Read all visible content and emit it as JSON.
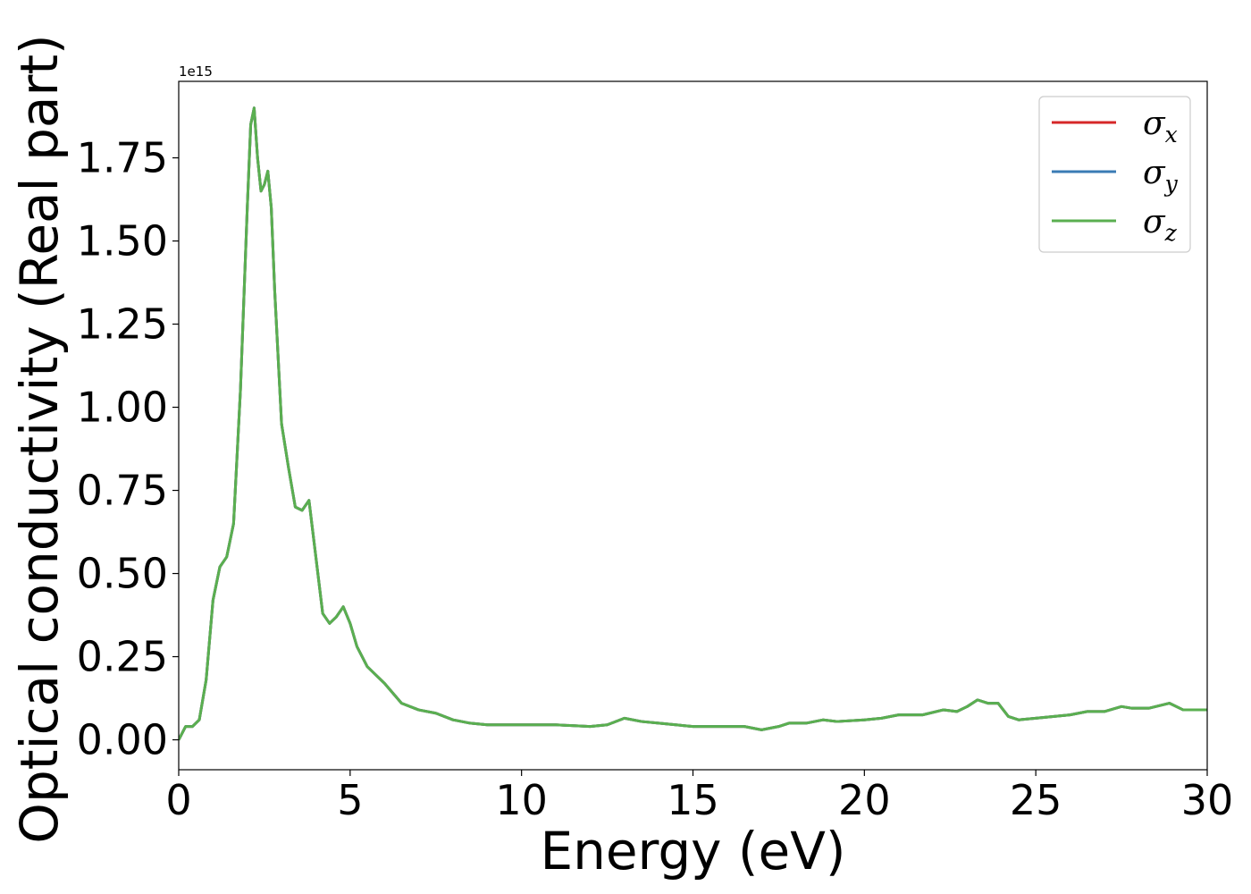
{
  "chart_data": {
    "type": "line",
    "xlabel": "Energy (eV)",
    "ylabel": "Optical conductivity (Real part)",
    "y_offset_text": "1e15",
    "xlim": [
      0,
      30
    ],
    "ylim": [
      -0.09,
      1.98
    ],
    "y_scale_factor": 1000000000000000.0,
    "x_ticks": [
      0,
      5,
      10,
      15,
      20,
      25,
      30
    ],
    "x_tick_labels": [
      "0",
      "5",
      "10",
      "15",
      "20",
      "25",
      "30"
    ],
    "y_ticks": [
      0.0,
      0.25,
      0.5,
      0.75,
      1.0,
      1.25,
      1.5,
      1.75
    ],
    "y_tick_labels": [
      "0.00",
      "0.25",
      "0.50",
      "0.75",
      "1.00",
      "1.25",
      "1.50",
      "1.75"
    ],
    "grid": false,
    "legend_placement": "upper-right",
    "series": [
      {
        "name": "σx",
        "base": "σ",
        "sub": "x",
        "color": "#d62728"
      },
      {
        "name": "σy",
        "base": "σ",
        "sub": "y",
        "color": "#3a7bb4"
      },
      {
        "name": "σz",
        "base": "σ",
        "sub": "z",
        "color": "#5aaf50"
      }
    ],
    "x": [
      0,
      0.2,
      0.4,
      0.6,
      0.8,
      1.0,
      1.2,
      1.4,
      1.6,
      1.8,
      2.0,
      2.1,
      2.2,
      2.3,
      2.4,
      2.5,
      2.6,
      2.7,
      2.8,
      3.0,
      3.2,
      3.4,
      3.6,
      3.8,
      4.0,
      4.2,
      4.4,
      4.6,
      4.8,
      5.0,
      5.2,
      5.5,
      6.0,
      6.5,
      7.0,
      7.5,
      8.0,
      8.5,
      9.0,
      10.0,
      11.0,
      12.0,
      12.5,
      13.0,
      13.5,
      14.0,
      14.5,
      15.0,
      16.0,
      16.5,
      17.0,
      17.5,
      17.8,
      18.3,
      18.8,
      19.2,
      20.0,
      20.5,
      21.0,
      21.7,
      22.3,
      22.7,
      23.0,
      23.3,
      23.6,
      23.9,
      24.2,
      24.5,
      25.0,
      25.5,
      26.0,
      26.5,
      27.0,
      27.5,
      27.8,
      28.3,
      28.9,
      29.3,
      30.0
    ],
    "y": [
      0.0,
      0.04,
      0.04,
      0.06,
      0.18,
      0.42,
      0.52,
      0.55,
      0.65,
      1.05,
      1.6,
      1.85,
      1.9,
      1.75,
      1.65,
      1.67,
      1.71,
      1.6,
      1.35,
      0.95,
      0.82,
      0.7,
      0.69,
      0.72,
      0.55,
      0.38,
      0.35,
      0.37,
      0.4,
      0.35,
      0.28,
      0.22,
      0.17,
      0.11,
      0.09,
      0.08,
      0.06,
      0.05,
      0.045,
      0.045,
      0.045,
      0.04,
      0.045,
      0.065,
      0.055,
      0.05,
      0.045,
      0.04,
      0.04,
      0.04,
      0.03,
      0.04,
      0.05,
      0.05,
      0.06,
      0.055,
      0.06,
      0.065,
      0.075,
      0.075,
      0.09,
      0.085,
      0.1,
      0.12,
      0.11,
      0.11,
      0.07,
      0.06,
      0.065,
      0.07,
      0.075,
      0.085,
      0.085,
      0.1,
      0.095,
      0.095,
      0.11,
      0.09,
      0.09
    ]
  }
}
